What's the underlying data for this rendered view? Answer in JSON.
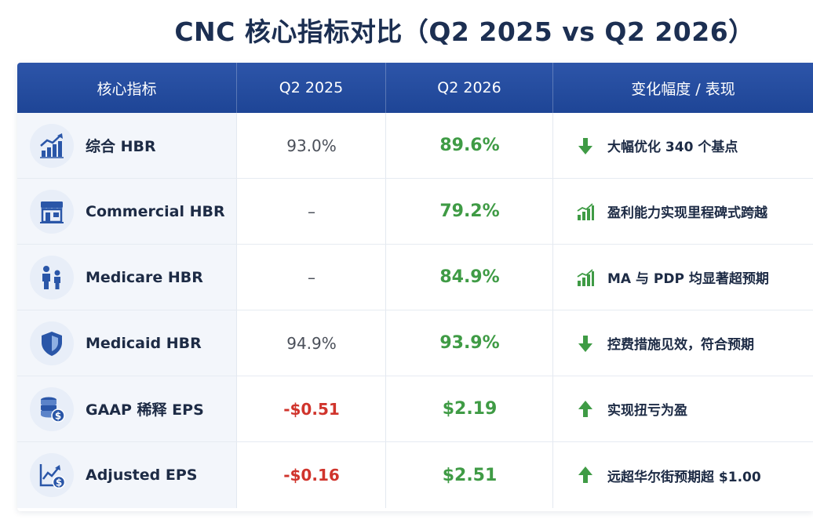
{
  "title": "CNC 核心指标对比（Q2 2025 vs Q2 2026）",
  "table": {
    "headers": [
      "核心指标",
      "Q2 2025",
      "Q2 2026",
      "变化幅度 / 表现"
    ],
    "rows": [
      {
        "icon": "chart-up-icon",
        "metric": "综合 HBR",
        "q2_2025": "93.0%",
        "q2_2026": "89.6%",
        "trend": "down-arrow-icon",
        "change": "大幅优化 340 个基点"
      },
      {
        "icon": "storefront-icon",
        "metric": "Commercial HBR",
        "q2_2025": "–",
        "q2_2026": "79.2%",
        "trend": "bar-chart-icon",
        "change": "盈利能力实现里程碑式跨越"
      },
      {
        "icon": "people-icon",
        "metric": "Medicare HBR",
        "q2_2025": "–",
        "q2_2026": "84.9%",
        "trend": "bar-chart-icon",
        "change": "MA 与 PDP 均显著超预期"
      },
      {
        "icon": "shield-icon",
        "metric": "Medicaid HBR",
        "q2_2025": "94.9%",
        "q2_2026": "93.9%",
        "trend": "down-arrow-icon",
        "change": "控费措施见效，符合预期"
      },
      {
        "icon": "coin-stack-icon",
        "metric": "GAAP 稀释 EPS",
        "q2_2025": "-$0.51",
        "q2_2026": "$2.19",
        "trend": "up-arrow-icon",
        "change": "实现扭亏为盈"
      },
      {
        "icon": "line-chart-dollar-icon",
        "metric": "Adjusted EPS",
        "q2_2025": "-$0.16",
        "q2_2026": "$2.51",
        "trend": "up-arrow-icon",
        "change": "远超华尔街预期超 $1.00"
      }
    ]
  },
  "colors": {
    "header_bg": "#2350a3",
    "positive": "#3f9b45",
    "negative": "#d0342c",
    "icon_blue": "#2a56a8"
  }
}
